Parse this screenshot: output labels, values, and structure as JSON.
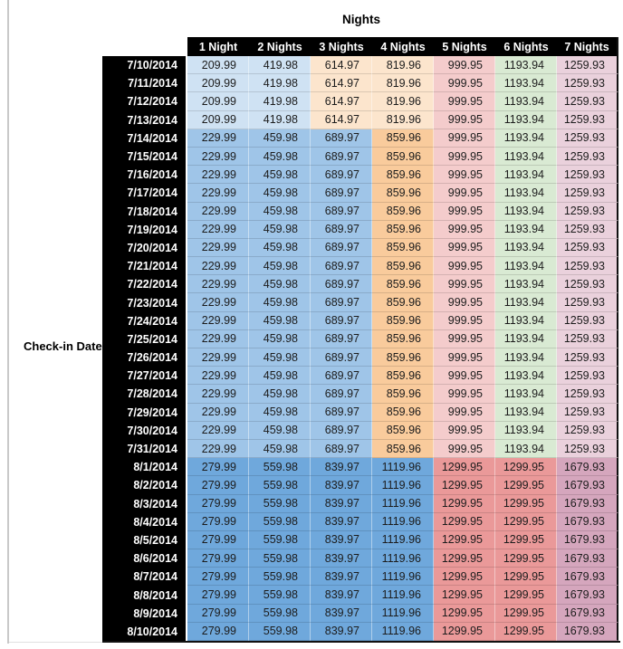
{
  "styles": {
    "header_bg": "#000000",
    "header_text": "#ffffff",
    "value_text": "#1c1c1c",
    "outer_border": "#111111",
    "window_edge_line": "#c9c9c9"
  },
  "chart_data": {
    "type": "table",
    "title": "Nights",
    "row_axis_label": "Check-in Date",
    "columns": [
      "1 Night",
      "2 Nights",
      "3 Nights",
      "4 Nights",
      "5 Nights",
      "6 Nights",
      "7 Nights"
    ],
    "row_groups": {
      "A": {
        "cell_colors": [
          "#cfe2f3",
          "#cfe2f3",
          "#fce5cd",
          "#fce5cd",
          "#f4cccc",
          "#d9ead3",
          "#ead1dc"
        ]
      },
      "B": {
        "cell_colors": [
          "#9fc5e8",
          "#9fc5e8",
          "#9fc5e8",
          "#f9cb9c",
          "#f4cccc",
          "#d9ead3",
          "#ead1dc"
        ]
      },
      "C": {
        "cell_colors": [
          "#6fa8dc",
          "#6fa8dc",
          "#6fa8dc",
          "#6fa8dc",
          "#ea9999",
          "#ea9999",
          "#d5a6bd"
        ]
      }
    },
    "rows": [
      {
        "date": "7/10/2014",
        "group": "A",
        "values": [
          209.99,
          419.98,
          614.97,
          819.96,
          999.95,
          1193.94,
          1259.93
        ]
      },
      {
        "date": "7/11/2014",
        "group": "A",
        "values": [
          209.99,
          419.98,
          614.97,
          819.96,
          999.95,
          1193.94,
          1259.93
        ]
      },
      {
        "date": "7/12/2014",
        "group": "A",
        "values": [
          209.99,
          419.98,
          614.97,
          819.96,
          999.95,
          1193.94,
          1259.93
        ]
      },
      {
        "date": "7/13/2014",
        "group": "A",
        "values": [
          209.99,
          419.98,
          614.97,
          819.96,
          999.95,
          1193.94,
          1259.93
        ]
      },
      {
        "date": "7/14/2014",
        "group": "B",
        "values": [
          229.99,
          459.98,
          689.97,
          859.96,
          999.95,
          1193.94,
          1259.93
        ]
      },
      {
        "date": "7/15/2014",
        "group": "B",
        "values": [
          229.99,
          459.98,
          689.97,
          859.96,
          999.95,
          1193.94,
          1259.93
        ]
      },
      {
        "date": "7/16/2014",
        "group": "B",
        "values": [
          229.99,
          459.98,
          689.97,
          859.96,
          999.95,
          1193.94,
          1259.93
        ]
      },
      {
        "date": "7/17/2014",
        "group": "B",
        "values": [
          229.99,
          459.98,
          689.97,
          859.96,
          999.95,
          1193.94,
          1259.93
        ]
      },
      {
        "date": "7/18/2014",
        "group": "B",
        "values": [
          229.99,
          459.98,
          689.97,
          859.96,
          999.95,
          1193.94,
          1259.93
        ]
      },
      {
        "date": "7/19/2014",
        "group": "B",
        "values": [
          229.99,
          459.98,
          689.97,
          859.96,
          999.95,
          1193.94,
          1259.93
        ]
      },
      {
        "date": "7/20/2014",
        "group": "B",
        "values": [
          229.99,
          459.98,
          689.97,
          859.96,
          999.95,
          1193.94,
          1259.93
        ]
      },
      {
        "date": "7/21/2014",
        "group": "B",
        "values": [
          229.99,
          459.98,
          689.97,
          859.96,
          999.95,
          1193.94,
          1259.93
        ]
      },
      {
        "date": "7/22/2014",
        "group": "B",
        "values": [
          229.99,
          459.98,
          689.97,
          859.96,
          999.95,
          1193.94,
          1259.93
        ]
      },
      {
        "date": "7/23/2014",
        "group": "B",
        "values": [
          229.99,
          459.98,
          689.97,
          859.96,
          999.95,
          1193.94,
          1259.93
        ]
      },
      {
        "date": "7/24/2014",
        "group": "B",
        "values": [
          229.99,
          459.98,
          689.97,
          859.96,
          999.95,
          1193.94,
          1259.93
        ]
      },
      {
        "date": "7/25/2014",
        "group": "B",
        "values": [
          229.99,
          459.98,
          689.97,
          859.96,
          999.95,
          1193.94,
          1259.93
        ]
      },
      {
        "date": "7/26/2014",
        "group": "B",
        "values": [
          229.99,
          459.98,
          689.97,
          859.96,
          999.95,
          1193.94,
          1259.93
        ]
      },
      {
        "date": "7/27/2014",
        "group": "B",
        "values": [
          229.99,
          459.98,
          689.97,
          859.96,
          999.95,
          1193.94,
          1259.93
        ]
      },
      {
        "date": "7/28/2014",
        "group": "B",
        "values": [
          229.99,
          459.98,
          689.97,
          859.96,
          999.95,
          1193.94,
          1259.93
        ]
      },
      {
        "date": "7/29/2014",
        "group": "B",
        "values": [
          229.99,
          459.98,
          689.97,
          859.96,
          999.95,
          1193.94,
          1259.93
        ]
      },
      {
        "date": "7/30/2014",
        "group": "B",
        "values": [
          229.99,
          459.98,
          689.97,
          859.96,
          999.95,
          1193.94,
          1259.93
        ]
      },
      {
        "date": "7/31/2014",
        "group": "B",
        "values": [
          229.99,
          459.98,
          689.97,
          859.96,
          999.95,
          1193.94,
          1259.93
        ]
      },
      {
        "date": "8/1/2014",
        "group": "C",
        "values": [
          279.99,
          559.98,
          839.97,
          1119.96,
          1299.95,
          1299.95,
          1679.93
        ]
      },
      {
        "date": "8/2/2014",
        "group": "C",
        "values": [
          279.99,
          559.98,
          839.97,
          1119.96,
          1299.95,
          1299.95,
          1679.93
        ]
      },
      {
        "date": "8/3/2014",
        "group": "C",
        "values": [
          279.99,
          559.98,
          839.97,
          1119.96,
          1299.95,
          1299.95,
          1679.93
        ]
      },
      {
        "date": "8/4/2014",
        "group": "C",
        "values": [
          279.99,
          559.98,
          839.97,
          1119.96,
          1299.95,
          1299.95,
          1679.93
        ]
      },
      {
        "date": "8/5/2014",
        "group": "C",
        "values": [
          279.99,
          559.98,
          839.97,
          1119.96,
          1299.95,
          1299.95,
          1679.93
        ]
      },
      {
        "date": "8/6/2014",
        "group": "C",
        "values": [
          279.99,
          559.98,
          839.97,
          1119.96,
          1299.95,
          1299.95,
          1679.93
        ]
      },
      {
        "date": "8/7/2014",
        "group": "C",
        "values": [
          279.99,
          559.98,
          839.97,
          1119.96,
          1299.95,
          1299.95,
          1679.93
        ]
      },
      {
        "date": "8/8/2014",
        "group": "C",
        "values": [
          279.99,
          559.98,
          839.97,
          1119.96,
          1299.95,
          1299.95,
          1679.93
        ]
      },
      {
        "date": "8/9/2014",
        "group": "C",
        "values": [
          279.99,
          559.98,
          839.97,
          1119.96,
          1299.95,
          1299.95,
          1679.93
        ]
      },
      {
        "date": "8/10/2014",
        "group": "C",
        "values": [
          279.99,
          559.98,
          839.97,
          1119.96,
          1299.95,
          1299.95,
          1679.93
        ]
      }
    ]
  }
}
